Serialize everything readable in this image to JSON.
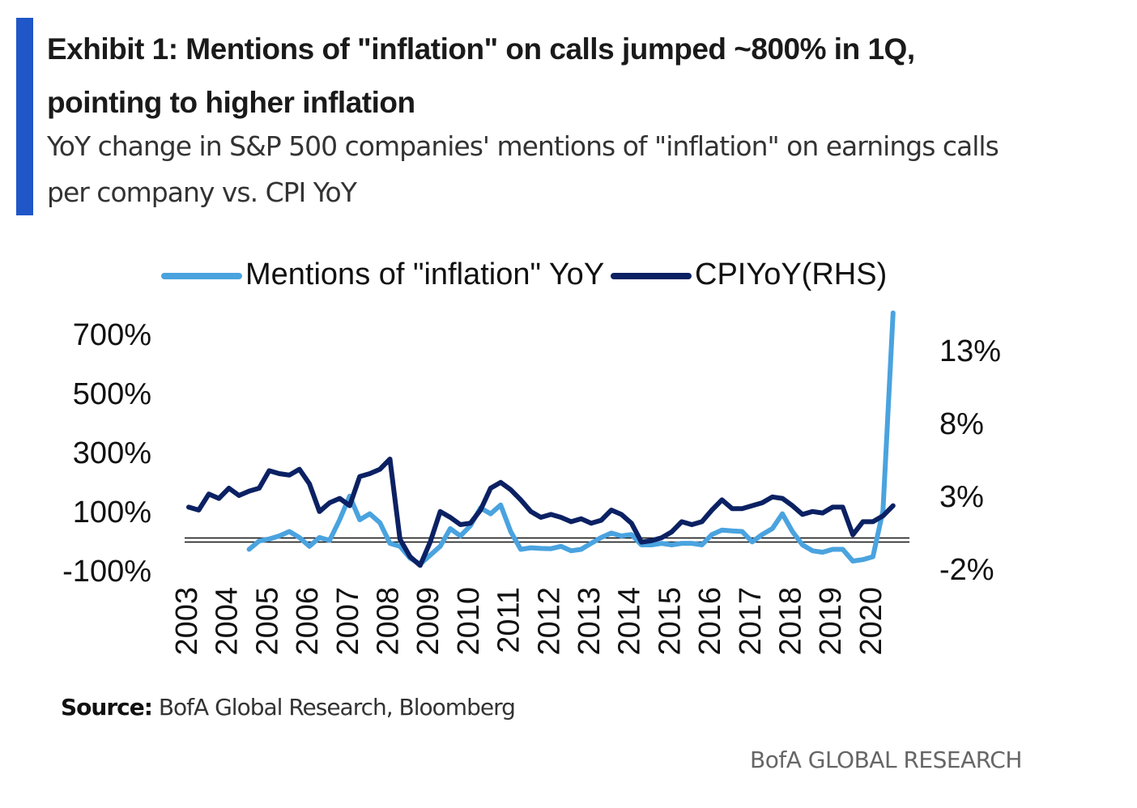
{
  "header": {
    "title": "Exhibit 1: Mentions of \"inflation\" on calls jumped ~800% in 1Q, pointing to higher inflation",
    "subtitle": "YoY change in S&P 500 companies' mentions of \"inflation\" on earnings calls per company vs. CPI YoY"
  },
  "footer": {
    "source_label": "Source:",
    "source_text": "BofA Global Research, Bloomberg",
    "brand": "BofA GLOBAL RESEARCH"
  },
  "colors": {
    "accent": "#1f56c8",
    "mentions": "#4aa3df",
    "cpi": "#0b2163"
  },
  "chart_data": {
    "type": "line",
    "title": "",
    "xlabel": "",
    "ylabel": "",
    "legend_position": "top",
    "grid": false,
    "x_tick_labels": [
      "2003",
      "2004",
      "2005",
      "2006",
      "2007",
      "2008",
      "2009",
      "2010",
      "2011",
      "2012",
      "2013",
      "2014",
      "2015",
      "2016",
      "2017",
      "2018",
      "2019",
      "2020"
    ],
    "y_left": {
      "ticks": [
        "700%",
        "500%",
        "300%",
        "100%",
        "-100%"
      ],
      "range": [
        -100,
        800
      ]
    },
    "y_right": {
      "ticks": [
        "13%",
        "8%",
        "3%",
        "-2%"
      ],
      "range": [
        -2.5,
        15
      ],
      "label": "RHS"
    },
    "series": [
      {
        "name": "Mentions of \"inflation\" YoY",
        "axis": "left",
        "x": [
          2004.5,
          2004.75,
          2005,
          2005.25,
          2005.5,
          2005.75,
          2006,
          2006.25,
          2006.5,
          2006.75,
          2007,
          2007.25,
          2007.5,
          2007.75,
          2008,
          2008.25,
          2008.5,
          2008.75,
          2009,
          2009.25,
          2009.5,
          2009.75,
          2010,
          2010.25,
          2010.5,
          2010.75,
          2011,
          2011.25,
          2011.5,
          2011.75,
          2012,
          2012.25,
          2012.5,
          2012.75,
          2013,
          2013.25,
          2013.5,
          2013.75,
          2014,
          2014.25,
          2014.5,
          2014.75,
          2015,
          2015.25,
          2015.5,
          2015.75,
          2016,
          2016.25,
          2016.5,
          2016.75,
          2017,
          2017.25,
          2017.5,
          2017.75,
          2018,
          2018.25,
          2018.5,
          2018.75,
          2019,
          2019.25,
          2019.5,
          2019.75,
          2020,
          2020.25,
          2020.5
        ],
        "values": [
          -30,
          -2,
          5,
          15,
          30,
          10,
          -20,
          10,
          0,
          70,
          150,
          70,
          90,
          60,
          -10,
          -20,
          -60,
          -80,
          -50,
          -20,
          40,
          15,
          50,
          110,
          90,
          120,
          30,
          -30,
          -25,
          -27,
          -28,
          -20,
          -35,
          -30,
          -10,
          10,
          25,
          15,
          20,
          -15,
          -15,
          -10,
          -15,
          -10,
          -10,
          -15,
          20,
          35,
          32,
          30,
          -5,
          20,
          40,
          90,
          30,
          -15,
          -35,
          -40,
          -30,
          -30,
          -70,
          -65,
          -55,
          100,
          770
        ]
      },
      {
        "name": "CPIYoY(RHS)",
        "axis": "right",
        "x": [
          2003,
          2003.25,
          2003.5,
          2003.75,
          2004,
          2004.25,
          2004.5,
          2004.75,
          2005,
          2005.25,
          2005.5,
          2005.75,
          2006,
          2006.25,
          2006.5,
          2006.75,
          2007,
          2007.25,
          2007.5,
          2007.75,
          2008,
          2008.25,
          2008.5,
          2008.75,
          2009,
          2009.25,
          2009.5,
          2009.75,
          2010,
          2010.25,
          2010.5,
          2010.75,
          2011,
          2011.25,
          2011.5,
          2011.75,
          2012,
          2012.25,
          2012.5,
          2012.75,
          2013,
          2013.25,
          2013.5,
          2013.75,
          2014,
          2014.25,
          2014.5,
          2014.75,
          2015,
          2015.25,
          2015.5,
          2015.75,
          2016,
          2016.25,
          2016.5,
          2016.75,
          2017,
          2017.25,
          2017.5,
          2017.75,
          2018,
          2018.25,
          2018.5,
          2018.75,
          2019,
          2019.25,
          2019.5,
          2019.75,
          2020,
          2020.25,
          2020.5
        ],
        "values": [
          2.2,
          2.0,
          3.1,
          2.8,
          3.5,
          3.0,
          3.3,
          3.5,
          4.7,
          4.5,
          4.4,
          4.8,
          3.8,
          1.9,
          2.5,
          2.8,
          2.3,
          4.3,
          4.5,
          4.8,
          5.5,
          0.0,
          -1.2,
          -1.8,
          -0.2,
          1.9,
          1.5,
          1.0,
          1.1,
          2.0,
          3.5,
          3.9,
          3.4,
          2.7,
          1.9,
          1.5,
          1.7,
          1.5,
          1.2,
          1.4,
          1.1,
          1.3,
          2.0,
          1.7,
          1.1,
          -0.2,
          -0.1,
          0.1,
          0.5,
          1.2,
          1.0,
          1.2,
          2.0,
          2.7,
          2.1,
          2.1,
          2.3,
          2.5,
          2.9,
          2.8,
          2.3,
          1.7,
          1.9,
          1.8,
          2.2,
          2.2,
          0.3,
          1.2,
          1.2,
          1.6,
          2.3
        ]
      }
    ]
  }
}
